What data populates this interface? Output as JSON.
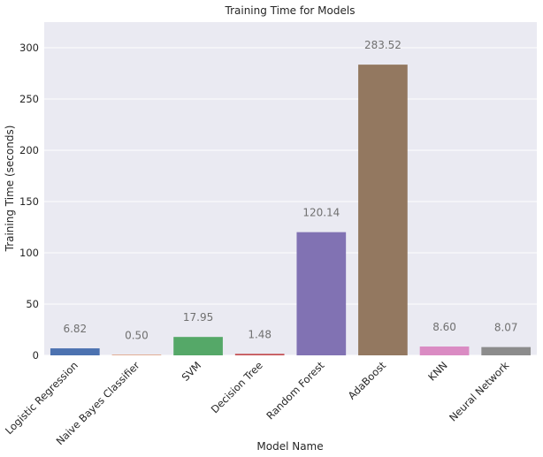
{
  "chart_data": {
    "type": "bar",
    "title": "Training Time for Models",
    "xlabel": "Model Name",
    "ylabel": "Training Time (seconds)",
    "categories": [
      "Logistic Regression",
      "Naive Bayes Classifier",
      "SVM",
      "Decision Tree",
      "Random Forest",
      "AdaBoost",
      "KNN",
      "Neural Network"
    ],
    "values": [
      6.82,
      0.5,
      17.95,
      1.48,
      120.14,
      283.52,
      8.6,
      8.07
    ],
    "value_labels": [
      "6.82",
      "0.50",
      "17.95",
      "1.48",
      "120.14",
      "283.52",
      "8.60",
      "8.07"
    ],
    "colors": [
      "#4c72b0",
      "#dd8452",
      "#55a868",
      "#c44e52",
      "#8172b3",
      "#937860",
      "#da8bc3",
      "#8c8c8c"
    ],
    "ylim": [
      0,
      325
    ],
    "yticks": [
      0,
      50,
      100,
      150,
      200,
      250,
      300
    ],
    "grid": true,
    "legend": "none",
    "background": "#eaeaf2"
  }
}
